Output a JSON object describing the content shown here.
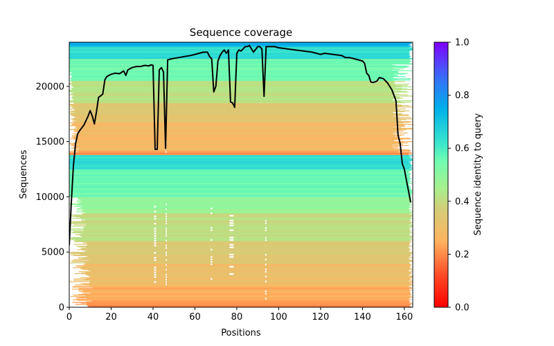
{
  "chart_data": {
    "type": "heatmap",
    "title": "Sequence coverage",
    "xlabel": "Positions",
    "ylabel": "Sequences",
    "xlim": [
      0,
      164
    ],
    "ylim": [
      0,
      24000
    ],
    "xticks": [
      0,
      20,
      40,
      60,
      80,
      100,
      120,
      140,
      160
    ],
    "yticks": [
      0,
      5000,
      10000,
      15000,
      20000
    ],
    "xtick_labels": [
      "0",
      "20",
      "40",
      "60",
      "80",
      "100",
      "120",
      "140",
      "160"
    ],
    "ytick_labels": [
      "0",
      "5000",
      "10000",
      "15000",
      "20000"
    ],
    "grid": false,
    "colorbar": {
      "label": "Sequence identity to query",
      "colormap": "rainbow_r",
      "range": [
        0.0,
        1.0
      ],
      "ticks": [
        0.0,
        0.2,
        0.4,
        0.6,
        0.8,
        1.0
      ],
      "tick_labels": [
        "0.0",
        "0.2",
        "0.4",
        "0.6",
        "0.8",
        "1.0"
      ],
      "placement": "right"
    },
    "identity_bands": [
      {
        "seq_from": 0,
        "seq_to": 600,
        "identity": 0.2
      },
      {
        "seq_from": 600,
        "seq_to": 2000,
        "identity": 0.25
      },
      {
        "seq_from": 2000,
        "seq_to": 4000,
        "identity": 0.3
      },
      {
        "seq_from": 4000,
        "seq_to": 6000,
        "identity": 0.35
      },
      {
        "seq_from": 6000,
        "seq_to": 8500,
        "identity": 0.4
      },
      {
        "seq_from": 8500,
        "seq_to": 10000,
        "identity": 0.48
      },
      {
        "seq_from": 10000,
        "seq_to": 12500,
        "identity": 0.56
      },
      {
        "seq_from": 12500,
        "seq_to": 13800,
        "identity": 0.64
      },
      {
        "seq_from": 13800,
        "seq_to": 14200,
        "identity": 0.22
      },
      {
        "seq_from": 14200,
        "seq_to": 16800,
        "identity": 0.28
      },
      {
        "seq_from": 16800,
        "seq_to": 18500,
        "identity": 0.34
      },
      {
        "seq_from": 18500,
        "seq_to": 20500,
        "identity": 0.42
      },
      {
        "seq_from": 20500,
        "seq_to": 22500,
        "identity": 0.55
      },
      {
        "seq_from": 22500,
        "seq_to": 23600,
        "identity": 0.64
      },
      {
        "seq_from": 23600,
        "seq_to": 24000,
        "identity": 0.74
      }
    ],
    "series": [
      {
        "name": "coverage",
        "color": "#000000",
        "x": [
          0,
          1,
          2,
          3,
          4,
          5,
          7,
          9,
          10,
          11,
          12,
          13,
          14,
          16,
          17,
          18,
          20,
          22,
          24,
          26,
          27,
          28,
          30,
          32,
          34,
          36,
          38,
          39,
          40,
          41,
          42,
          43,
          44,
          45,
          46,
          47,
          49,
          52,
          55,
          58,
          60,
          62,
          64,
          66,
          67,
          68,
          69,
          70,
          71,
          72,
          73,
          74,
          75,
          76,
          77,
          78,
          79,
          80,
          81,
          82,
          84,
          85,
          86,
          88,
          90,
          91,
          92,
          93,
          94,
          96,
          98,
          100,
          104,
          108,
          112,
          116,
          120,
          122,
          126,
          130,
          132,
          134,
          136,
          138,
          140,
          141,
          142,
          143,
          144,
          145,
          146,
          147,
          148,
          150,
          152,
          154,
          156,
          157,
          158,
          159,
          160,
          161,
          162,
          163
        ],
        "values": [
          5600,
          9500,
          12800,
          14800,
          15700,
          16000,
          16500,
          17300,
          17800,
          17300,
          16600,
          17700,
          19000,
          19300,
          20600,
          20900,
          21100,
          21200,
          21150,
          21400,
          21000,
          21500,
          21700,
          21800,
          21800,
          21900,
          21850,
          21950,
          21900,
          14300,
          14300,
          21500,
          21700,
          21300,
          14400,
          22400,
          22500,
          22600,
          22700,
          22800,
          22900,
          23000,
          23100,
          23100,
          22700,
          22500,
          19500,
          20000,
          22300,
          22800,
          23100,
          23300,
          23000,
          23300,
          18600,
          18500,
          18100,
          23000,
          23300,
          23200,
          23600,
          23600,
          23700,
          23100,
          23600,
          23600,
          23400,
          19100,
          23600,
          23600,
          23600,
          23500,
          23400,
          23300,
          23200,
          23100,
          22900,
          23000,
          22900,
          22800,
          22600,
          22600,
          22500,
          22400,
          22300,
          22100,
          21200,
          21000,
          20400,
          20350,
          20400,
          20500,
          20800,
          20700,
          20300,
          19700,
          18700,
          15600,
          14800,
          13000,
          12500,
          11500,
          10500,
          9500
        ]
      }
    ]
  }
}
